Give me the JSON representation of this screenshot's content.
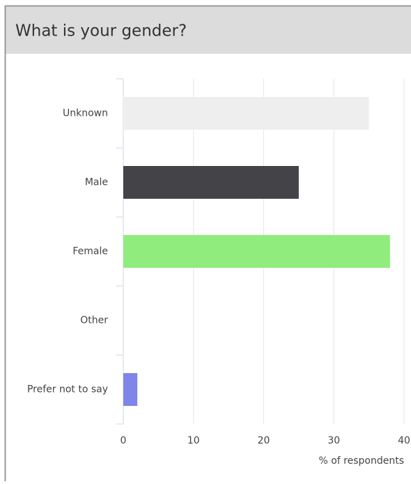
{
  "chart_data": {
    "type": "bar",
    "orientation": "horizontal",
    "title": "What is your gender?",
    "categories": [
      "Unknown",
      "Male",
      "Female",
      "Other",
      "Prefer not to say"
    ],
    "values": [
      35,
      25,
      38,
      0,
      2
    ],
    "colors": [
      "#eeeeee",
      "#434348",
      "#90ed7d",
      "#7cb5ec",
      "#8085e9"
    ],
    "xlabel": "% of respondents",
    "xlim": [
      0,
      40
    ],
    "xticks": [
      0,
      10,
      20,
      30,
      40
    ],
    "grid": true
  }
}
